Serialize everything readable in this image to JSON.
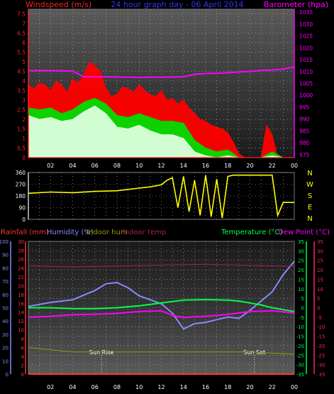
{
  "chart_data": [
    {
      "type": "area",
      "panel": "wind-baro",
      "title": "24 hour graph day - 06 April 2014",
      "left_axis_label": "Windspeed (m/s)",
      "right_axis_label": "Barometer (hpa)",
      "left_ticks": [
        "0",
        "0.5",
        "1",
        "1.5",
        "2",
        "2.5",
        "3",
        "3.5",
        "4",
        "4.5",
        "5",
        "5.5",
        "6",
        "6.5",
        "7",
        "7.5"
      ],
      "right_ticks": [
        "975",
        "980",
        "985",
        "990",
        "995",
        "1000",
        "1005",
        "1010",
        "1015",
        "1020",
        "1025",
        "1030",
        "1035"
      ],
      "x_ticks": [
        "02",
        "04",
        "06",
        "08",
        "10",
        "12",
        "14",
        "16",
        "18",
        "20",
        "22",
        "00"
      ],
      "ylim_left": [
        0,
        7.75
      ],
      "ylim_right": [
        973.75,
        1036.25
      ],
      "series": [
        {
          "key": "gust",
          "color": "#ff0000",
          "x": [
            0,
            0.5,
            1,
            1.5,
            2,
            2.5,
            3,
            3.5,
            4,
            4.5,
            5,
            5.5,
            6,
            6.5,
            7,
            7.5,
            8,
            8.5,
            9,
            9.5,
            10,
            10.5,
            11,
            11.5,
            12,
            12.5,
            13,
            13.5,
            14,
            14.5,
            15,
            15.5,
            16,
            16.5,
            17,
            17.5,
            18,
            18.5,
            19,
            19.5,
            20,
            20.5,
            21,
            21.5,
            22,
            22.5,
            23,
            23.5,
            24
          ],
          "values": [
            3.8,
            3.6,
            3.9,
            3.8,
            3.5,
            4.0,
            3.8,
            3.4,
            4.1,
            3.9,
            4.3,
            5.0,
            4.8,
            4.5,
            3.6,
            3.2,
            3.3,
            3.7,
            3.6,
            3.4,
            3.8,
            3.5,
            3.3,
            3.2,
            3.5,
            3.0,
            3.1,
            2.8,
            3.0,
            2.6,
            2.3,
            2.0,
            1.9,
            1.7,
            1.6,
            1.5,
            1.3,
            0.8,
            0.2,
            0,
            0,
            0,
            0,
            1.7,
            1.2,
            0,
            0,
            0,
            0
          ]
        },
        {
          "key": "avg",
          "color": "#00dd00",
          "x": [
            0,
            1,
            2,
            3,
            4,
            5,
            6,
            7,
            8,
            9,
            10,
            11,
            12,
            13,
            14,
            15,
            16,
            17,
            18,
            19,
            20,
            21,
            22,
            23,
            24
          ],
          "values": [
            2.6,
            2.5,
            2.6,
            2.3,
            2.5,
            2.9,
            3.1,
            2.8,
            2.2,
            2.1,
            2.3,
            2.1,
            1.9,
            1.9,
            1.8,
            0.9,
            0.5,
            0.3,
            0.4,
            0,
            0,
            0,
            0.3,
            0,
            0
          ]
        },
        {
          "key": "speed",
          "color": "#ddffdd",
          "x": [
            0,
            1,
            2,
            3,
            4,
            5,
            6,
            7,
            8,
            9,
            10,
            11,
            12,
            13,
            14,
            15,
            16,
            17,
            18,
            19,
            20,
            21,
            22,
            23,
            24
          ],
          "values": [
            2.2,
            2.0,
            2.1,
            1.9,
            2.0,
            2.4,
            2.7,
            2.3,
            1.6,
            1.5,
            1.7,
            1.4,
            1.2,
            1.2,
            1.0,
            0.3,
            0.1,
            0,
            0.1,
            0,
            0,
            0,
            0.1,
            0,
            0
          ]
        },
        {
          "key": "barometer",
          "color": "#ff00ff",
          "x": [
            0,
            2,
            4,
            5,
            6,
            7,
            8,
            9,
            10,
            11,
            12,
            13,
            14,
            15,
            16,
            17,
            18,
            19,
            20,
            21,
            22,
            23,
            24
          ],
          "values": [
            1010.4,
            1010.4,
            1010.2,
            1007.8,
            1007.8,
            1007.8,
            1007.7,
            1007.6,
            1007.5,
            1007.6,
            1007.6,
            1007.7,
            1007.8,
            1008.8,
            1009.2,
            1009.3,
            1009.5,
            1009.8,
            1010.0,
            1010.5,
            1010.6,
            1011.0,
            1012.0
          ]
        }
      ]
    },
    {
      "type": "line",
      "panel": "wind-direction",
      "right_axis_letters": [
        "N",
        "W",
        "S",
        "E",
        "N"
      ],
      "left_ticks": [
        "0",
        "90",
        "180",
        "270",
        "360"
      ],
      "ylim": [
        0,
        360
      ],
      "series": [
        {
          "key": "direction",
          "color": "#ffff00",
          "x": [
            0,
            2,
            4,
            6,
            8,
            9,
            10,
            11,
            12,
            12.5,
            13,
            13.5,
            14,
            14.5,
            15,
            15.5,
            16,
            16.5,
            17,
            17.5,
            18,
            18.5,
            19,
            20,
            21,
            22,
            22.5,
            23,
            24
          ],
          "values": [
            200,
            210,
            205,
            215,
            220,
            230,
            240,
            250,
            265,
            300,
            320,
            90,
            330,
            60,
            300,
            30,
            340,
            20,
            310,
            10,
            330,
            340,
            340,
            340,
            340,
            340,
            30,
            130,
            130
          ]
        }
      ]
    },
    {
      "type": "line",
      "panel": "temp-hum",
      "legend_left": [
        {
          "label": "Rainfall (mm)",
          "color": "#ff3333"
        },
        {
          "label": "Humidity (%)",
          "color": "#8888ff"
        },
        {
          "label": "Indoor hum",
          "color": "#999900"
        },
        {
          "label": "Indoor temp",
          "color": "#aa2255"
        }
      ],
      "legend_right": [
        {
          "label": "Temperature (°C)",
          "color": "#00ff44"
        },
        {
          "label": "Dew Point (°C)",
          "color": "#ff00ff"
        }
      ],
      "humidity_ticks": [
        "0",
        "10",
        "20",
        "30",
        "40",
        "50",
        "60",
        "70",
        "80",
        "90",
        "100"
      ],
      "rain_ticks": [
        "0",
        "2",
        "4",
        "6",
        "8",
        "10",
        "12",
        "14",
        "16",
        "18",
        "20",
        "22",
        "24",
        "26",
        "28",
        "30"
      ],
      "temp_ticks": [
        "-35",
        "-30",
        "-25",
        "-20",
        "-15",
        "-10",
        "-5",
        "0",
        "5",
        "10",
        "15",
        "20",
        "25",
        "30",
        "35"
      ],
      "indoor_ticks": [
        "-35",
        "-30",
        "-25",
        "-20",
        "-15",
        "-10",
        "-5",
        "0",
        "5",
        "10",
        "15",
        "20",
        "25",
        "30",
        "35"
      ],
      "x_ticks": [
        "02",
        "04",
        "06",
        "08",
        "10",
        "12",
        "14",
        "16",
        "18",
        "20",
        "22",
        "00"
      ],
      "annotations": [
        "Sun Rise",
        "Sun Set"
      ],
      "sunrise_hour": 6.6,
      "sunset_hour": 20.4,
      "series": [
        {
          "key": "humidity",
          "color": "#8888ff",
          "x": [
            0,
            2,
            4,
            6,
            7,
            8,
            9,
            10,
            11,
            12,
            13,
            14,
            15,
            16,
            17,
            18,
            19,
            20,
            21,
            22,
            23,
            24
          ],
          "values": [
            51,
            54,
            56,
            63,
            68,
            69,
            65,
            59,
            56,
            53,
            46,
            34,
            38,
            39,
            41,
            43,
            42,
            48,
            55,
            62,
            75,
            85
          ]
        },
        {
          "key": "temperature",
          "color": "#00ff44",
          "x": [
            0,
            2,
            4,
            6,
            8,
            10,
            12,
            14,
            16,
            18,
            19,
            20,
            21,
            22,
            23,
            24
          ],
          "values": [
            0,
            0,
            -0.5,
            -0.5,
            0,
            1,
            2.5,
            4,
            4.3,
            4,
            3.5,
            2.5,
            1.5,
            0,
            -1,
            -2
          ]
        },
        {
          "key": "dewpoint",
          "color": "#ff00ff",
          "x": [
            0,
            2,
            4,
            6,
            8,
            10,
            12,
            13,
            14,
            15,
            16,
            18,
            20,
            22,
            23,
            24
          ],
          "values": [
            -5,
            -4.5,
            -3.7,
            -3.4,
            -3,
            -2,
            -1.6,
            -4,
            -5.2,
            -4.8,
            -4.5,
            -3.5,
            -2,
            -1.6,
            -2.1,
            -2.8
          ]
        },
        {
          "key": "indoor_temp",
          "color": "#aa2255",
          "x": [
            0,
            4,
            8,
            12,
            16,
            20,
            24
          ],
          "values": [
            22.2,
            21.5,
            22,
            22.5,
            22.9,
            22.3,
            21.9
          ]
        },
        {
          "key": "indoor_hum",
          "color": "#999900",
          "x": [
            0,
            4,
            8,
            12,
            16,
            20,
            24
          ],
          "values": [
            6,
            5,
            5,
            5,
            5,
            5,
            4.5
          ]
        },
        {
          "key": "rainfall",
          "color": "#ff3333",
          "x": [
            0,
            24
          ],
          "values": [
            0,
            0
          ]
        }
      ]
    }
  ]
}
